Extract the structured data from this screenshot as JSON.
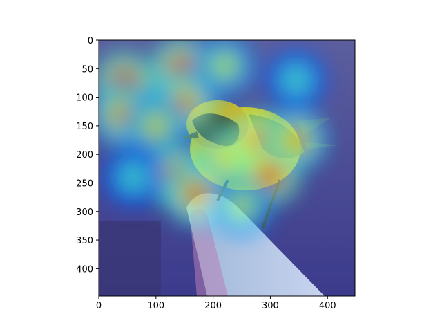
{
  "chart_data": {
    "type": "heatmap",
    "title": "",
    "xlabel": "",
    "ylabel": "",
    "xlim": [
      0,
      448
    ],
    "ylim": [
      448,
      0
    ],
    "x_ticks": [
      0,
      100,
      200,
      300,
      400
    ],
    "y_ticks": [
      0,
      50,
      100,
      150,
      200,
      250,
      300,
      350,
      400
    ],
    "colormap": "jet",
    "background_image": "bird-on-branch-photo",
    "grid": false,
    "activation_peaks": [
      {
        "x": 45,
        "y": 75,
        "level": 0.95
      },
      {
        "x": 40,
        "y": 130,
        "level": 0.75
      },
      {
        "x": 145,
        "y": 50,
        "level": 0.92
      },
      {
        "x": 150,
        "y": 110,
        "level": 0.8
      },
      {
        "x": 100,
        "y": 150,
        "level": 0.65
      },
      {
        "x": 140,
        "y": 240,
        "level": 0.9
      },
      {
        "x": 170,
        "y": 270,
        "level": 0.85
      },
      {
        "x": 230,
        "y": 200,
        "level": 0.7
      },
      {
        "x": 280,
        "y": 180,
        "level": 0.9
      },
      {
        "x": 300,
        "y": 235,
        "level": 0.95
      },
      {
        "x": 345,
        "y": 175,
        "level": 0.75
      },
      {
        "x": 250,
        "y": 290,
        "level": 0.6
      },
      {
        "x": 220,
        "y": 45,
        "level": 0.6
      },
      {
        "x": 345,
        "y": 70,
        "level": 0.45
      },
      {
        "x": 60,
        "y": 240,
        "level": 0.45
      }
    ]
  },
  "colors": {
    "background": "#ffffff",
    "axis": "#000000",
    "low": "#2a2f8f"
  }
}
